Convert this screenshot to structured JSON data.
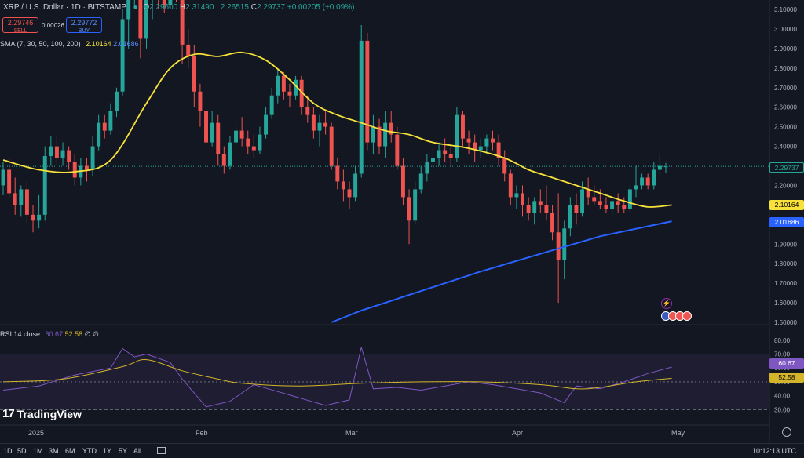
{
  "header": {
    "symbol": "XRP / U.S. Dollar · 1D · BITSTAMP",
    "ohlc": {
      "o_label": "O",
      "o": "2.29600",
      "h_label": "H",
      "h": "2.31490",
      "l_label": "L",
      "l": "2.26515",
      "c_label": "C",
      "c": "2.29737",
      "change": "+0.00205 (+0.09%)"
    },
    "sell": {
      "price": "2.29746",
      "label": "SELL"
    },
    "buy": {
      "price": "2.29772",
      "label": "BUY"
    },
    "spread": "0.00026",
    "sma_legend": {
      "label": "SMA (7, 30, 50, 100, 200)",
      "v1": "2.10164",
      "v2": "2.01686"
    },
    "rsi_legend": {
      "label": "RSI 14 close",
      "v1": "60.67",
      "v2": "52.58",
      "v3": "∅",
      "v4": "∅"
    }
  },
  "price_axis": [
    "3.10000",
    "3.00000",
    "2.90000",
    "2.80000",
    "2.70000",
    "2.60000",
    "2.50000",
    "2.40000",
    "2.30000",
    "2.20000",
    "2.10000",
    "2.00000",
    "1.90000",
    "1.80000",
    "1.70000",
    "1.60000",
    "1.50000"
  ],
  "price_tags": {
    "last": "2.29737",
    "sma_yellow": "2.10164",
    "sma_blue": "2.01686"
  },
  "rsi_axis": [
    "80.00",
    "70.00",
    "60.00",
    "50.00",
    "40.00",
    "30.00"
  ],
  "rsi_tags": {
    "rsi": "60.67",
    "rsi_ma": "52.58"
  },
  "time_axis": [
    "2025",
    "Feb",
    "Mar",
    "Apr",
    "May"
  ],
  "timeframes": [
    "1D",
    "5D",
    "1M",
    "3M",
    "6M",
    "YTD",
    "1Y",
    "5Y",
    "All"
  ],
  "clock": "10:12:13 UTC",
  "brand": "TradingView",
  "colors": {
    "up": "#26a69a",
    "down": "#ef5350",
    "sma_yellow": "#f7e13a",
    "sma_blue": "#2962ff",
    "rsi": "#7e57c2",
    "rsi_ma": "#d4b52a",
    "bg": "#131722"
  },
  "chart_data": {
    "type": "candlestick",
    "title": "XRP / U.S. Dollar · 1D · BITSTAMP",
    "ylim": [
      1.5,
      3.1
    ],
    "candles": [
      [
        2.2,
        2.32,
        2.15,
        2.28
      ],
      [
        2.28,
        2.34,
        2.14,
        2.16
      ],
      [
        2.16,
        2.24,
        2.05,
        2.1
      ],
      [
        2.1,
        2.2,
        2.04,
        2.18
      ],
      [
        2.18,
        2.22,
        2.0,
        2.05
      ],
      [
        2.05,
        2.1,
        1.96,
        2.02
      ],
      [
        2.02,
        2.15,
        1.98,
        2.05
      ],
      [
        2.05,
        2.4,
        2.02,
        2.35
      ],
      [
        2.35,
        2.45,
        2.3,
        2.4
      ],
      [
        2.4,
        2.46,
        2.3,
        2.34
      ],
      [
        2.34,
        2.42,
        2.3,
        2.38
      ],
      [
        2.38,
        2.4,
        2.28,
        2.32
      ],
      [
        2.32,
        2.36,
        2.2,
        2.24
      ],
      [
        2.24,
        2.34,
        2.2,
        2.3
      ],
      [
        2.3,
        2.34,
        2.22,
        2.28
      ],
      [
        2.28,
        2.45,
        2.25,
        2.4
      ],
      [
        2.4,
        2.56,
        2.38,
        2.52
      ],
      [
        2.52,
        2.56,
        2.44,
        2.48
      ],
      [
        2.48,
        2.62,
        2.46,
        2.58
      ],
      [
        2.58,
        2.7,
        2.55,
        2.68
      ],
      [
        2.68,
        3.1,
        2.66,
        3.05
      ],
      [
        3.05,
        3.28,
        2.9,
        3.2
      ],
      [
        3.2,
        3.4,
        3.1,
        3.3
      ],
      [
        3.3,
        3.3,
        2.85,
        2.95
      ],
      [
        2.95,
        3.2,
        2.9,
        3.15
      ],
      [
        3.15,
        3.3,
        3.05,
        3.22
      ],
      [
        3.22,
        3.25,
        3.1,
        3.18
      ],
      [
        3.18,
        3.22,
        3.08,
        3.12
      ],
      [
        3.12,
        3.3,
        3.1,
        3.26
      ],
      [
        3.26,
        3.34,
        3.14,
        3.2
      ],
      [
        3.2,
        3.25,
        2.82,
        2.92
      ],
      [
        2.92,
        3.0,
        2.8,
        2.86
      ],
      [
        2.86,
        2.92,
        2.6,
        2.68
      ],
      [
        2.68,
        2.72,
        2.5,
        2.58
      ],
      [
        2.58,
        2.62,
        1.77,
        2.42
      ],
      [
        2.42,
        2.58,
        2.4,
        2.52
      ],
      [
        2.52,
        2.56,
        2.3,
        2.36
      ],
      [
        2.36,
        2.4,
        2.26,
        2.3
      ],
      [
        2.3,
        2.45,
        2.28,
        2.42
      ],
      [
        2.42,
        2.52,
        2.38,
        2.48
      ],
      [
        2.48,
        2.55,
        2.4,
        2.44
      ],
      [
        2.44,
        2.48,
        2.36,
        2.4
      ],
      [
        2.4,
        2.46,
        2.34,
        2.38
      ],
      [
        2.38,
        2.5,
        2.36,
        2.46
      ],
      [
        2.46,
        2.6,
        2.44,
        2.56
      ],
      [
        2.56,
        2.7,
        2.54,
        2.66
      ],
      [
        2.66,
        2.8,
        2.62,
        2.76
      ],
      [
        2.76,
        2.78,
        2.64,
        2.68
      ],
      [
        2.68,
        2.72,
        2.6,
        2.66
      ],
      [
        2.66,
        2.76,
        2.64,
        2.74
      ],
      [
        2.74,
        2.76,
        2.56,
        2.6
      ],
      [
        2.6,
        2.66,
        2.52,
        2.56
      ],
      [
        2.56,
        2.6,
        2.44,
        2.48
      ],
      [
        2.48,
        2.56,
        2.4,
        2.52
      ],
      [
        2.52,
        2.58,
        2.46,
        2.5
      ],
      [
        2.5,
        2.52,
        2.28,
        2.3
      ],
      [
        2.3,
        2.34,
        2.18,
        2.22
      ],
      [
        2.22,
        2.28,
        2.12,
        2.18
      ],
      [
        2.18,
        2.22,
        2.08,
        2.14
      ],
      [
        2.14,
        2.3,
        2.12,
        2.26
      ],
      [
        2.26,
        3.02,
        2.24,
        2.94
      ],
      [
        2.94,
        2.98,
        2.38,
        2.42
      ],
      [
        2.42,
        2.56,
        2.36,
        2.5
      ],
      [
        2.5,
        2.54,
        2.36,
        2.4
      ],
      [
        2.4,
        2.58,
        2.34,
        2.52
      ],
      [
        2.52,
        2.58,
        2.42,
        2.46
      ],
      [
        2.46,
        2.5,
        2.28,
        2.3
      ],
      [
        2.3,
        2.34,
        2.1,
        2.14
      ],
      [
        2.14,
        2.18,
        1.9,
        2.02
      ],
      [
        2.02,
        2.22,
        2.0,
        2.18
      ],
      [
        2.18,
        2.3,
        2.16,
        2.26
      ],
      [
        2.26,
        2.36,
        2.22,
        2.32
      ],
      [
        2.32,
        2.4,
        2.28,
        2.34
      ],
      [
        2.34,
        2.42,
        2.3,
        2.38
      ],
      [
        2.38,
        2.44,
        2.32,
        2.36
      ],
      [
        2.36,
        2.4,
        2.3,
        2.34
      ],
      [
        2.34,
        2.6,
        2.32,
        2.56
      ],
      [
        2.56,
        2.58,
        2.4,
        2.44
      ],
      [
        2.44,
        2.48,
        2.36,
        2.42
      ],
      [
        2.42,
        2.46,
        2.32,
        2.38
      ],
      [
        2.38,
        2.44,
        2.34,
        2.4
      ],
      [
        2.4,
        2.46,
        2.36,
        2.44
      ],
      [
        2.44,
        2.48,
        2.38,
        2.42
      ],
      [
        2.42,
        2.46,
        2.3,
        2.34
      ],
      [
        2.34,
        2.38,
        2.22,
        2.26
      ],
      [
        2.26,
        2.28,
        2.1,
        2.14
      ],
      [
        2.14,
        2.2,
        2.08,
        2.16
      ],
      [
        2.16,
        2.2,
        2.04,
        2.1
      ],
      [
        2.1,
        2.14,
        2.02,
        2.06
      ],
      [
        2.06,
        2.14,
        2.0,
        2.12
      ],
      [
        2.12,
        2.18,
        2.06,
        2.1
      ],
      [
        2.1,
        2.2,
        2.02,
        2.06
      ],
      [
        2.06,
        2.1,
        1.92,
        1.96
      ],
      [
        1.96,
        2.16,
        1.6,
        1.82
      ],
      [
        1.82,
        2.02,
        1.72,
        1.98
      ],
      [
        1.98,
        2.14,
        1.94,
        2.1
      ],
      [
        2.1,
        2.16,
        2.0,
        2.06
      ],
      [
        2.06,
        2.22,
        2.04,
        2.18
      ],
      [
        2.18,
        2.24,
        2.1,
        2.14
      ],
      [
        2.14,
        2.2,
        2.1,
        2.12
      ],
      [
        2.12,
        2.18,
        2.08,
        2.1
      ],
      [
        2.1,
        2.14,
        2.06,
        2.08
      ],
      [
        2.08,
        2.14,
        2.04,
        2.12
      ],
      [
        2.12,
        2.16,
        2.06,
        2.1
      ],
      [
        2.1,
        2.14,
        2.06,
        2.08
      ],
      [
        2.08,
        2.2,
        2.06,
        2.18
      ],
      [
        2.18,
        2.3,
        2.14,
        2.2
      ],
      [
        2.2,
        2.26,
        2.18,
        2.24
      ],
      [
        2.24,
        2.26,
        2.18,
        2.2
      ],
      [
        2.2,
        2.32,
        2.18,
        2.28
      ],
      [
        2.28,
        2.36,
        2.26,
        2.3
      ],
      [
        2.296,
        2.3149,
        2.26515,
        2.29737
      ]
    ],
    "sma_yellow": [
      [
        0,
        2.33
      ],
      [
        6,
        2.28
      ],
      [
        12,
        2.27
      ],
      [
        18,
        2.33
      ],
      [
        24,
        2.62
      ],
      [
        28,
        2.8
      ],
      [
        32,
        2.87
      ],
      [
        36,
        2.86
      ],
      [
        40,
        2.88
      ],
      [
        44,
        2.84
      ],
      [
        48,
        2.74
      ],
      [
        52,
        2.62
      ],
      [
        56,
        2.56
      ],
      [
        60,
        2.52
      ],
      [
        64,
        2.48
      ],
      [
        68,
        2.46
      ],
      [
        72,
        2.42
      ],
      [
        78,
        2.39
      ],
      [
        84,
        2.34
      ],
      [
        88,
        2.28
      ],
      [
        92,
        2.24
      ],
      [
        96,
        2.2
      ],
      [
        100,
        2.16
      ],
      [
        104,
        2.12
      ],
      [
        108,
        2.09
      ],
      [
        112,
        2.1
      ]
    ],
    "sma_blue": [
      [
        55,
        1.5
      ],
      [
        60,
        1.56
      ],
      [
        70,
        1.66
      ],
      [
        80,
        1.76
      ],
      [
        90,
        1.85
      ],
      [
        100,
        1.94
      ],
      [
        112,
        2.01686
      ]
    ],
    "rsi": [
      [
        0,
        44
      ],
      [
        6,
        47
      ],
      [
        12,
        55
      ],
      [
        18,
        60
      ],
      [
        20,
        74
      ],
      [
        22,
        68
      ],
      [
        24,
        70
      ],
      [
        28,
        64
      ],
      [
        30,
        52
      ],
      [
        34,
        32
      ],
      [
        38,
        36
      ],
      [
        42,
        48
      ],
      [
        46,
        43
      ],
      [
        50,
        38
      ],
      [
        54,
        33
      ],
      [
        58,
        37
      ],
      [
        60,
        75
      ],
      [
        62,
        45
      ],
      [
        66,
        46
      ],
      [
        70,
        44
      ],
      [
        74,
        47
      ],
      [
        78,
        50
      ],
      [
        82,
        48
      ],
      [
        86,
        45
      ],
      [
        90,
        42
      ],
      [
        94,
        35
      ],
      [
        96,
        47
      ],
      [
        100,
        45
      ],
      [
        104,
        50
      ],
      [
        108,
        56
      ],
      [
        112,
        60.67
      ]
    ],
    "rsi_ma": [
      [
        0,
        50
      ],
      [
        10,
        52
      ],
      [
        20,
        61
      ],
      [
        24,
        66
      ],
      [
        30,
        58
      ],
      [
        36,
        52
      ],
      [
        40,
        49
      ],
      [
        50,
        47
      ],
      [
        60,
        49
      ],
      [
        70,
        50
      ],
      [
        80,
        50
      ],
      [
        90,
        48
      ],
      [
        96,
        45
      ],
      [
        100,
        46
      ],
      [
        106,
        50
      ],
      [
        112,
        52.58
      ]
    ],
    "rsi_ylim": [
      20,
      85
    ],
    "rsi_band": [
      70,
      30
    ],
    "rsi_midline": 50
  }
}
